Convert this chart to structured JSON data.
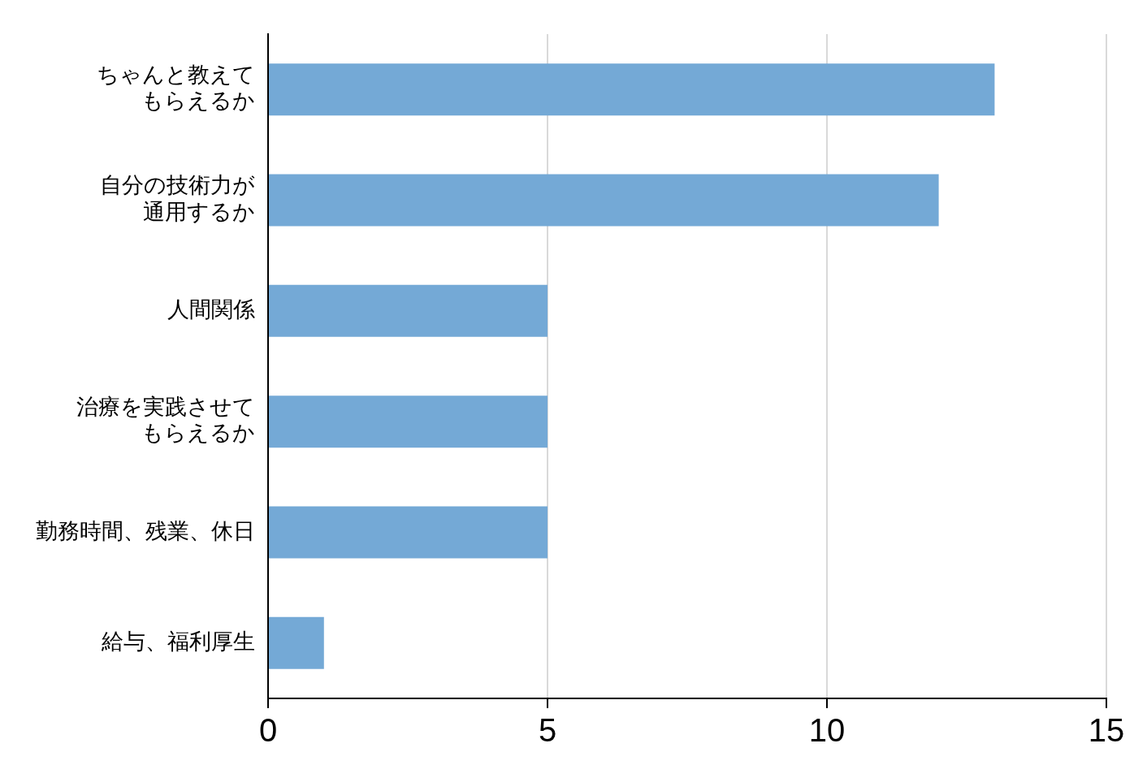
{
  "chart_data": {
    "type": "bar",
    "orientation": "horizontal",
    "categories": [
      "ちゃんと教えてもらえるか",
      "自分の技術力が通用するか",
      "人間関係",
      "治療を実践させてもらえるか",
      "勤務時間、残業、休日",
      "給与、福利厚生"
    ],
    "values": [
      13,
      12,
      5,
      5,
      5,
      1
    ],
    "color": "#74a9d6",
    "xlim": [
      0,
      15
    ],
    "xticks": [
      0,
      5,
      10,
      15
    ],
    "grid": "x",
    "legend": false
  }
}
